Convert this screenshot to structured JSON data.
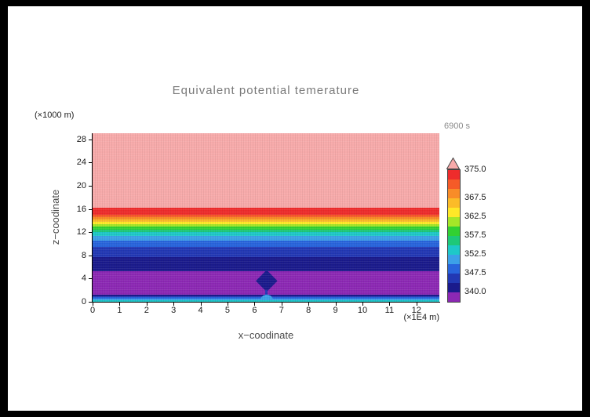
{
  "title": "Equivalent potential temerature",
  "timestamp_label": "6900 s",
  "axes": {
    "x_label": "x−coodinate",
    "x_unit_label": "(×1E4 m)",
    "y_label": "z−coodinate",
    "y_unit_label": "(×1000 m)",
    "x_ticks": [
      "0",
      "1",
      "2",
      "3",
      "4",
      "5",
      "6",
      "7",
      "8",
      "9",
      "10",
      "11",
      "12"
    ],
    "y_ticks": [
      "0",
      "4",
      "8",
      "12",
      "16",
      "20",
      "24",
      "28"
    ]
  },
  "colorbar": {
    "arrow_color": "#f7aaaa",
    "boxes_top_to_bottom": [
      "#ee2c2c",
      "#f55b28",
      "#f88c28",
      "#fbbb28",
      "#ffe828",
      "#a6e628",
      "#32d032",
      "#1ec878",
      "#1ec8c8",
      "#3ca0e8",
      "#2864dc",
      "#2238b4",
      "#1a1a8c",
      "#8c28b4"
    ],
    "labels": [
      {
        "text": "375.0",
        "boundary": 0
      },
      {
        "text": "367.5",
        "boundary": 3
      },
      {
        "text": "362.5",
        "boundary": 5
      },
      {
        "text": "357.5",
        "boundary": 7
      },
      {
        "text": "352.5",
        "boundary": 9
      },
      {
        "text": "347.5",
        "boundary": 11
      },
      {
        "text": "340.0",
        "boundary": 13
      }
    ]
  },
  "chart_data": {
    "type": "heatmap",
    "title": "Equivalent potential temerature",
    "xlabel": "x−coodinate (×1E4 m)",
    "ylabel": "z−coodinate (×1000 m)",
    "time": "6900 s",
    "x_range": [
      0,
      12.85
    ],
    "z_range": [
      0,
      29.05
    ],
    "x_tick_values": [
      0,
      1,
      2,
      3,
      4,
      5,
      6,
      7,
      8,
      9,
      10,
      11,
      12
    ],
    "z_tick_values": [
      0,
      4,
      8,
      12,
      16,
      20,
      24,
      28
    ],
    "contour_levels": [
      340,
      345,
      347.5,
      350,
      352.5,
      355,
      357.5,
      360,
      362.5,
      365,
      367.5,
      370,
      372.5,
      375
    ],
    "labeled_levels": [
      375.0,
      367.5,
      362.5,
      357.5,
      352.5,
      347.5,
      340.0
    ],
    "bands": [
      {
        "z_from": 0.0,
        "z_to": 0.3,
        "value_range": "352.5–355",
        "color": "#1ec8c8"
      },
      {
        "z_from": 0.3,
        "z_to": 0.55,
        "value_range": "350–352.5",
        "color": "#3ca0e8"
      },
      {
        "z_from": 0.55,
        "z_to": 0.8,
        "value_range": "347.5–350",
        "color": "#2864dc"
      },
      {
        "z_from": 0.8,
        "z_to": 1.0,
        "value_range": "345–347.5",
        "color": "#2238b4"
      },
      {
        "z_from": 1.0,
        "z_to": 1.25,
        "value_range": "340–345",
        "color": "#1a1a8c"
      },
      {
        "z_from": 1.25,
        "z_to": 5.3,
        "value_range": "<340",
        "color": "#8c28b4"
      },
      {
        "z_from": 5.3,
        "z_to": 7.7,
        "value_range": "340–345",
        "color": "#1a1a8c"
      },
      {
        "z_from": 7.7,
        "z_to": 9.4,
        "value_range": "345–347.5",
        "color": "#2238b4"
      },
      {
        "z_from": 9.4,
        "z_to": 10.5,
        "value_range": "347.5–350",
        "color": "#2864dc"
      },
      {
        "z_from": 10.5,
        "z_to": 11.3,
        "value_range": "350–352.5",
        "color": "#3ca0e8"
      },
      {
        "z_from": 11.3,
        "z_to": 12.0,
        "value_range": "352.5–355",
        "color": "#1ec8c8"
      },
      {
        "z_from": 12.0,
        "z_to": 12.5,
        "value_range": "355–357.5",
        "color": "#1ec878"
      },
      {
        "z_from": 12.5,
        "z_to": 13.0,
        "value_range": "357.5–360",
        "color": "#32d032"
      },
      {
        "z_from": 13.0,
        "z_to": 13.4,
        "value_range": "360–362.5",
        "color": "#a6e628"
      },
      {
        "z_from": 13.4,
        "z_to": 13.8,
        "value_range": "362.5–365",
        "color": "#ffe828"
      },
      {
        "z_from": 13.8,
        "z_to": 14.2,
        "value_range": "365–367.5",
        "color": "#fbbb28"
      },
      {
        "z_from": 14.2,
        "z_to": 14.6,
        "value_range": "367.5–370",
        "color": "#f88c28"
      },
      {
        "z_from": 14.6,
        "z_to": 15.0,
        "value_range": "370–372.5",
        "color": "#f55b28"
      },
      {
        "z_from": 15.0,
        "z_to": 16.2,
        "value_range": "372.5–375",
        "color": "#ee2c2c"
      },
      {
        "z_from": 16.2,
        "z_to": 29.05,
        "value_range": ">375",
        "color": "#f7aaaa"
      }
    ],
    "anomaly": {
      "description": "small diamond-shaped low-theta-e anomaly with surface bump near x=6.5",
      "center_x": 6.45,
      "center_z": 3.6,
      "half_width_x": 0.4,
      "half_height_z": 1.9,
      "color": "#1a1a8c",
      "stem_color": "#2238b4",
      "surface_bump_color": "#3ca0e8"
    }
  }
}
